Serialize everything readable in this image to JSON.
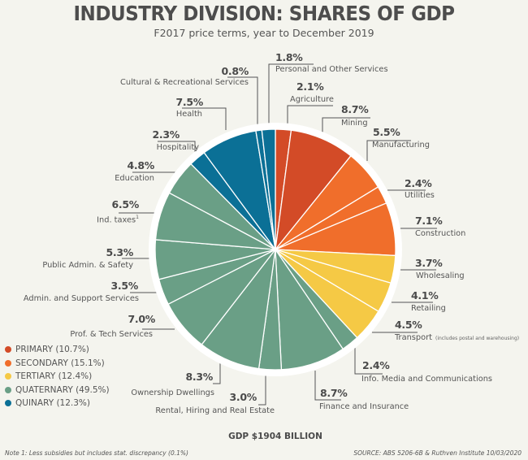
{
  "title": "INDUSTRY DIVISION: SHARES OF GDP",
  "subtitle": "F2017 price terms, year to December 2019",
  "chart_data": {
    "type": "pie",
    "title": "INDUSTRY DIVISION: SHARES OF GDP",
    "subtitle": "F2017 price terms, year to December 2019",
    "unit": "%",
    "start": "12 o'clock",
    "direction": "clockwise",
    "groups": [
      {
        "key": "primary",
        "label": "PRIMARY",
        "share": 10.7,
        "color": "#d34b27"
      },
      {
        "key": "secondary",
        "label": "SECONDARY",
        "share": 15.1,
        "color": "#f06e2b"
      },
      {
        "key": "tertiary",
        "label": "TERTIARY",
        "share": 12.4,
        "color": "#f5c945"
      },
      {
        "key": "quaternary",
        "label": "QUATERNARY",
        "share": 49.5,
        "color": "#6a9f86"
      },
      {
        "key": "quinary",
        "label": "QUINARY",
        "share": 12.3,
        "color": "#0b7096"
      }
    ],
    "slices": [
      {
        "label": "Agriculture",
        "value": 2.1,
        "pct_text": "2.1%",
        "group": "primary"
      },
      {
        "label": "Mining",
        "value": 8.7,
        "pct_text": "8.7%",
        "group": "primary"
      },
      {
        "label": "Manufacturing",
        "value": 5.5,
        "pct_text": "5.5%",
        "group": "secondary"
      },
      {
        "label": "Utilities",
        "value": 2.4,
        "pct_text": "2.4%",
        "group": "secondary"
      },
      {
        "label": "Construction",
        "value": 7.1,
        "pct_text": "7.1%",
        "group": "secondary"
      },
      {
        "label": "Wholesaling",
        "value": 3.7,
        "pct_text": "3.7%",
        "group": "tertiary"
      },
      {
        "label": "Retailing",
        "value": 4.1,
        "pct_text": "4.1%",
        "group": "tertiary"
      },
      {
        "label": "Transport",
        "note": "(includes postal and warehousing)",
        "value": 4.5,
        "pct_text": "4.5%",
        "group": "tertiary"
      },
      {
        "label": "Info. Media and Communications",
        "value": 2.4,
        "pct_text": "2.4%",
        "group": "quaternary"
      },
      {
        "label": "Finance and Insurance",
        "value": 8.7,
        "pct_text": "8.7%",
        "group": "quaternary"
      },
      {
        "label": "Rental, Hiring and Real Estate",
        "value": 3.0,
        "pct_text": "3.0%",
        "group": "quaternary"
      },
      {
        "label": "Ownership Dwellings",
        "value": 8.3,
        "pct_text": "8.3%",
        "group": "quaternary"
      },
      {
        "label": "Prof. & Tech Services",
        "value": 7.0,
        "pct_text": "7.0%",
        "group": "quaternary"
      },
      {
        "label": "Admin. and Support Services",
        "value": 3.5,
        "pct_text": "3.5%",
        "group": "quaternary"
      },
      {
        "label": "Public Admin. & Safety",
        "value": 5.3,
        "pct_text": "5.3%",
        "group": "quaternary"
      },
      {
        "label": "Ind. taxes",
        "superscript": "1",
        "value": 6.5,
        "pct_text": "6.5%",
        "group": "quaternary"
      },
      {
        "label": "Education",
        "value": 4.8,
        "pct_text": "4.8%",
        "group": "quaternary"
      },
      {
        "label": "Hospitality",
        "value": 2.3,
        "pct_text": "2.3%",
        "group": "quinary"
      },
      {
        "label": "Health",
        "value": 7.5,
        "pct_text": "7.5%",
        "group": "quinary"
      },
      {
        "label": "Cultural & Recreational Services",
        "value": 0.8,
        "pct_text": "0.8%",
        "group": "quinary"
      },
      {
        "label": "Personal and Other Services",
        "value": 1.8,
        "pct_text": "1.8%",
        "group": "quinary"
      }
    ],
    "total_label": "GDP $1904 BILLION"
  },
  "legend": [
    {
      "text": "PRIMARY (10.7%)",
      "color": "#d34b27"
    },
    {
      "text": "SECONDARY (15.1%)",
      "color": "#f06e2b"
    },
    {
      "text": "TERTIARY (12.4%)",
      "color": "#f5c945"
    },
    {
      "text": "QUATERNARY (49.5%)",
      "color": "#6a9f86"
    },
    {
      "text": "QUINARY (12.3%)",
      "color": "#0b7096"
    }
  ],
  "gdp_label": "GDP $1904 BILLION",
  "note": "Note 1: Less subsidies but includes stat. discrepancy (0.1%)",
  "source": "SOURCE: ABS 5206-6B & Ruthven Institute 10/03/2020"
}
